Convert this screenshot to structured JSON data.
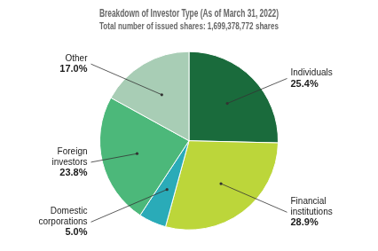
{
  "chart_data": {
    "type": "pie",
    "title": "Breakdown of Investor Type (As of March 31, 2022)",
    "subtitle": "Total number of issued shares: 1,699,378,772 shares",
    "categories": [
      "Individuals",
      "Financial\ninstitutions",
      "Domestic\ncorporations",
      "Foreign\ninvestors",
      "Other"
    ],
    "values": [
      25.4,
      28.9,
      5.0,
      23.8,
      17.0
    ],
    "value_labels": [
      "25.4%",
      "28.9%",
      "5.0%",
      "23.8%",
      "17.0%"
    ],
    "colors": [
      "#1a6b3c",
      "#bcd63a",
      "#2aabb8",
      "#4cb87a",
      "#a8cdb5"
    ],
    "data_labels": true
  }
}
